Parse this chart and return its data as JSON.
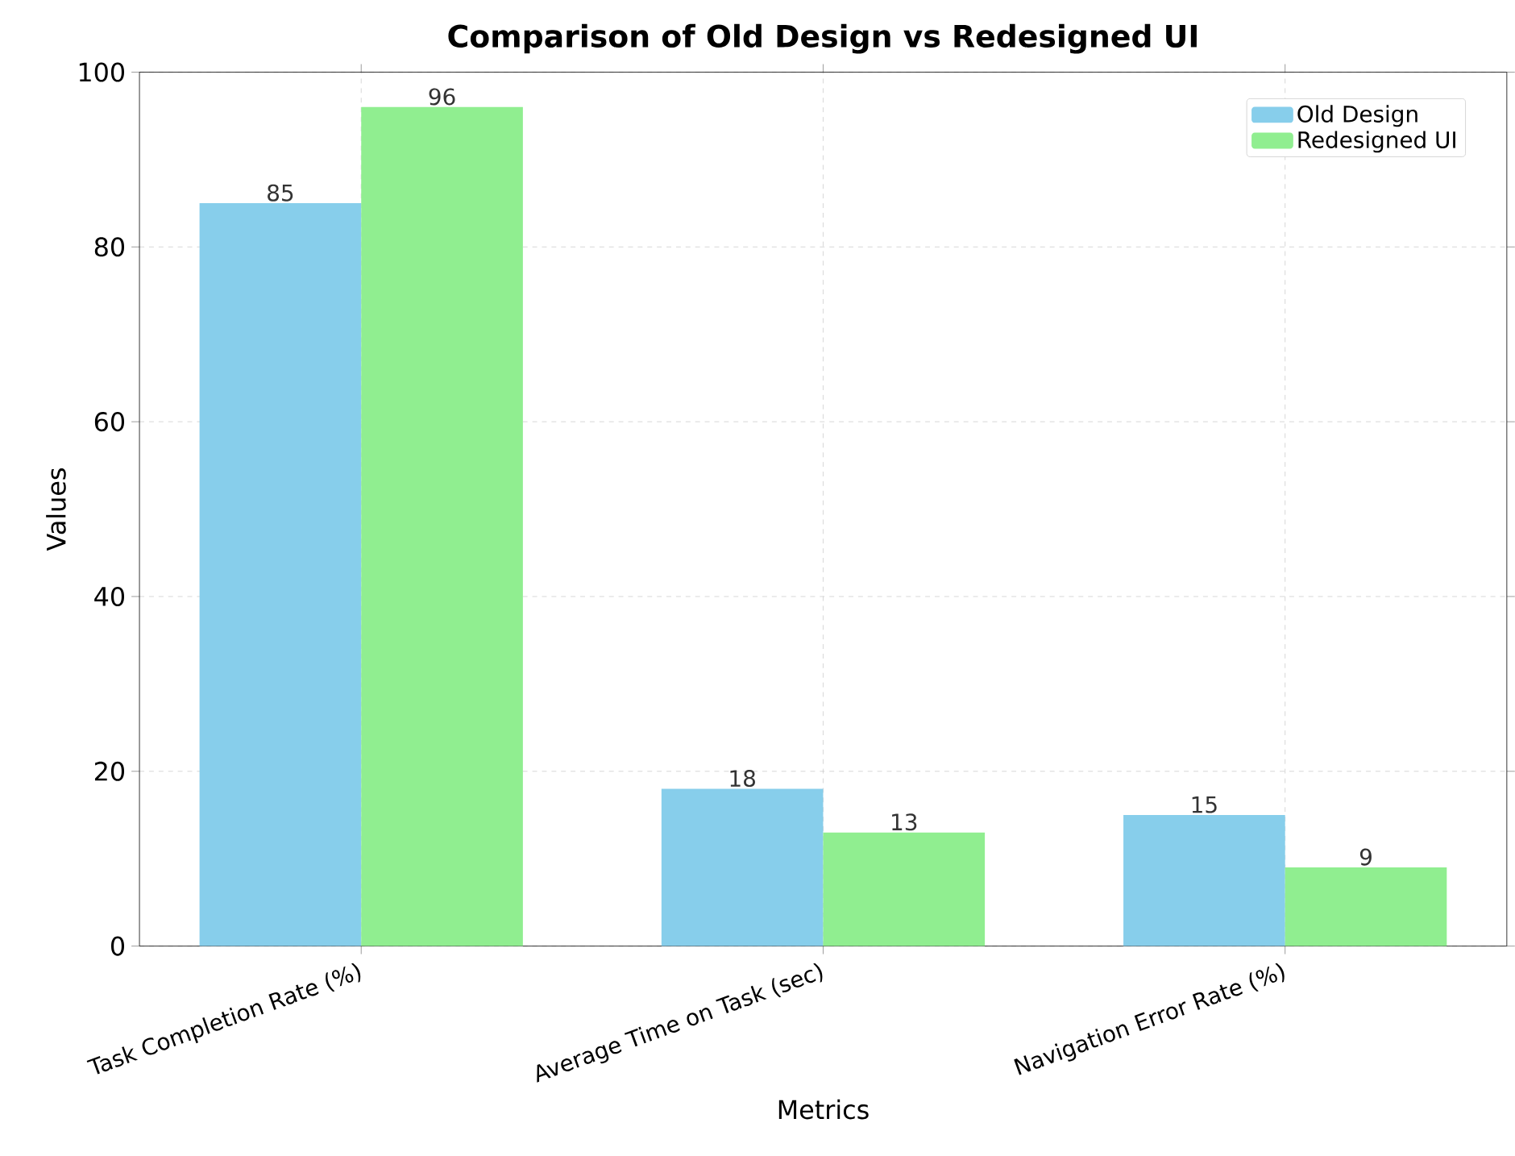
{
  "chart_data": {
    "type": "bar",
    "title": "Comparison of Old Design vs Redesigned UI",
    "xlabel": "Metrics",
    "ylabel": "Values",
    "categories": [
      "Task Completion Rate (%)",
      "Average Time on Task (sec)",
      "Navigation Error Rate (%)"
    ],
    "series": [
      {
        "name": "Old Design",
        "color": "#87ceeb",
        "values": [
          85,
          18,
          15
        ]
      },
      {
        "name": "Redesigned UI",
        "color": "#90ee90",
        "values": [
          96,
          13,
          9
        ]
      }
    ],
    "ylim": [
      0,
      100
    ],
    "yticks": [
      0,
      20,
      40,
      60,
      80,
      100
    ],
    "grid": true,
    "legend": "top right",
    "data_labels": true
  }
}
